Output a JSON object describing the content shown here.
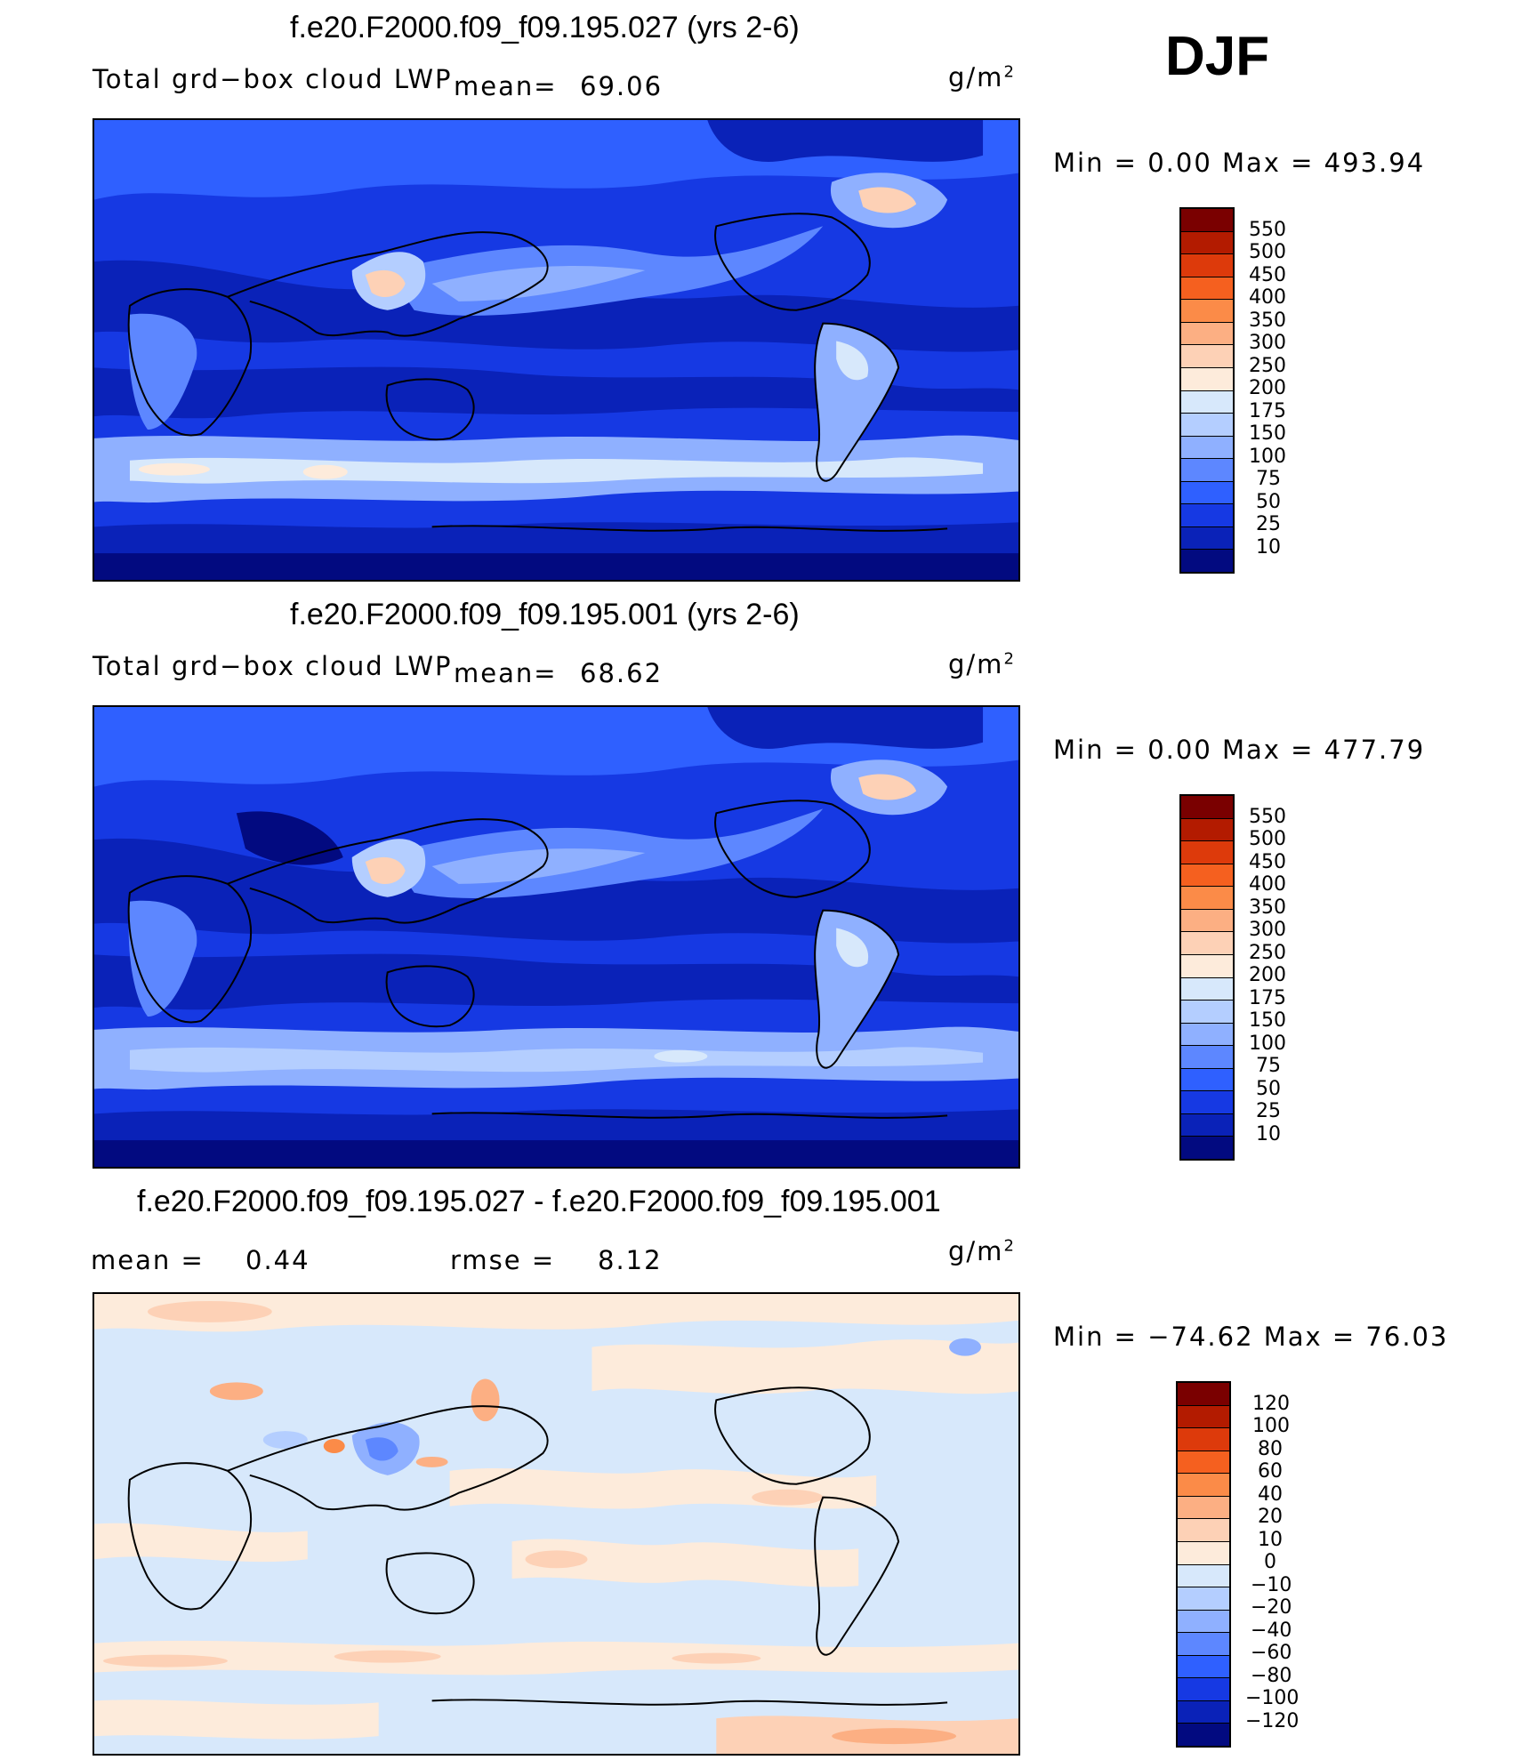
{
  "season": "DJF",
  "panels": [
    {
      "title": "f.e20.F2000.f09_f09.195.027 (yrs 2-6)",
      "left_label": "Total grd−box cloud LWP",
      "mean_label": "mean=",
      "mean_value": "69.06",
      "units_base": "g/m",
      "units_exp": "2",
      "minmax": "Min =    0.00  Max =  493.94",
      "colorbar_labels": [
        "550",
        "500",
        "450",
        "400",
        "350",
        "300",
        "250",
        "200",
        "175",
        "150",
        "100",
        "75",
        "50",
        "25",
        "10"
      ]
    },
    {
      "title": "f.e20.F2000.f09_f09.195.001 (yrs 2-6)",
      "left_label": "Total grd−box cloud LWP",
      "mean_label": "mean=",
      "mean_value": "68.62",
      "units_base": "g/m",
      "units_exp": "2",
      "minmax": "Min =    0.00  Max =  477.79",
      "colorbar_labels": [
        "550",
        "500",
        "450",
        "400",
        "350",
        "300",
        "250",
        "200",
        "175",
        "150",
        "100",
        "75",
        "50",
        "25",
        "10"
      ]
    },
    {
      "title": "f.e20.F2000.f09_f09.195.027 - f.e20.F2000.f09_f09.195.001",
      "mean_label": "mean =",
      "mean_value": "0.44",
      "rmse_label": "rmse =",
      "rmse_value": "8.12",
      "units_base": "g/m",
      "units_exp": "2",
      "minmax": "Min = −74.62  Max =   76.03",
      "colorbar_labels": [
        "120",
        "100",
        "80",
        "60",
        "40",
        "20",
        "10",
        "0",
        "−10",
        "−20",
        "−40",
        "−60",
        "−80",
        "−100",
        "−120"
      ]
    }
  ],
  "colors": {
    "abs_scale": [
      "#7a0000",
      "#b31b00",
      "#dd3a0b",
      "#f5601f",
      "#fb8b48",
      "#fcaf83",
      "#fdd1b6",
      "#fdebdb",
      "#d7e8fb",
      "#b4ceff",
      "#8fb0ff",
      "#5d87ff",
      "#2f60ff",
      "#1639e3",
      "#0a22b8",
      "#020a80"
    ],
    "diff_scale": [
      "#7a0000",
      "#b31b00",
      "#dd3a0b",
      "#f5601f",
      "#fb8b48",
      "#fcaf83",
      "#fdd1b6",
      "#fdebdb",
      "#d7e8fb",
      "#b4ceff",
      "#8fb0ff",
      "#5d87ff",
      "#2f60ff",
      "#1639e3",
      "#0a22b8",
      "#020a80"
    ]
  }
}
